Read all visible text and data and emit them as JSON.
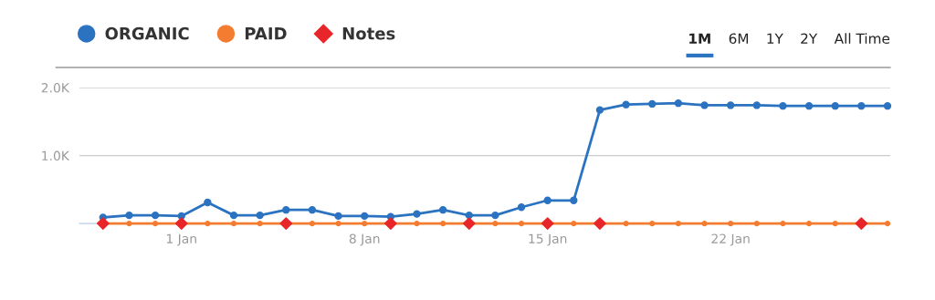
{
  "chart_data": {
    "type": "line",
    "categories": [
      null,
      null,
      null,
      "1 Jan",
      null,
      null,
      null,
      null,
      null,
      null,
      "8 Jan",
      null,
      null,
      null,
      null,
      null,
      null,
      "15 Jan",
      null,
      null,
      null,
      null,
      null,
      null,
      "22 Jan",
      null,
      null,
      null,
      null,
      null,
      null
    ],
    "series": [
      {
        "name": "ORGANIC",
        "color": "#2b73c0",
        "marker": "circle",
        "values": [
          90,
          120,
          120,
          110,
          310,
          120,
          120,
          200,
          200,
          110,
          110,
          100,
          140,
          200,
          120,
          120,
          240,
          340,
          340,
          1670,
          1750,
          1760,
          1770,
          1740,
          1740,
          1740,
          1730,
          1730,
          1730,
          1730,
          1730
        ]
      },
      {
        "name": "PAID",
        "color": "#f47c30",
        "marker": "circle",
        "values": [
          0,
          0,
          0,
          0,
          0,
          0,
          0,
          0,
          0,
          0,
          0,
          0,
          0,
          0,
          0,
          0,
          0,
          0,
          0,
          0,
          0,
          0,
          0,
          0,
          0,
          0,
          0,
          0,
          0,
          0,
          0
        ]
      },
      {
        "name": "Notes",
        "type": "scatter",
        "color": "#e8262a",
        "marker": "diamond",
        "values": [
          0,
          null,
          null,
          0,
          null,
          null,
          null,
          0,
          null,
          null,
          null,
          0,
          null,
          null,
          0,
          null,
          null,
          0,
          null,
          0,
          null,
          null,
          null,
          null,
          null,
          null,
          null,
          null,
          null,
          0,
          null
        ]
      }
    ],
    "ylim": [
      0,
      2000
    ],
    "yticks": [
      {
        "value": 1000,
        "label": "1.0K"
      },
      {
        "value": 2000,
        "label": "2.0K"
      }
    ],
    "grid": "y",
    "legend": "top left",
    "line_style": "solid",
    "annotations": [
      "1M",
      "6M",
      "1Y",
      "2Y",
      "All Time"
    ]
  }
}
